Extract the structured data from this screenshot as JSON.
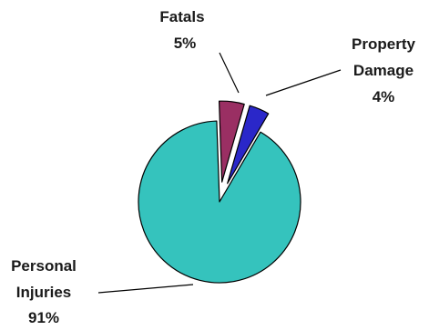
{
  "chart_data": {
    "type": "pie",
    "exploded": true,
    "slices": [
      {
        "label_lines": [
          "Personal",
          "Injuries"
        ],
        "pct_text": "91%",
        "value": 91,
        "color": "#35c3bd"
      },
      {
        "label_lines": [
          "Fatals"
        ],
        "pct_text": "5%",
        "value": 5,
        "color": "#9a2f63"
      },
      {
        "label_lines": [
          "Property",
          "Damage"
        ],
        "pct_text": "4%",
        "value": 4,
        "color": "#2a27c9"
      }
    ]
  }
}
